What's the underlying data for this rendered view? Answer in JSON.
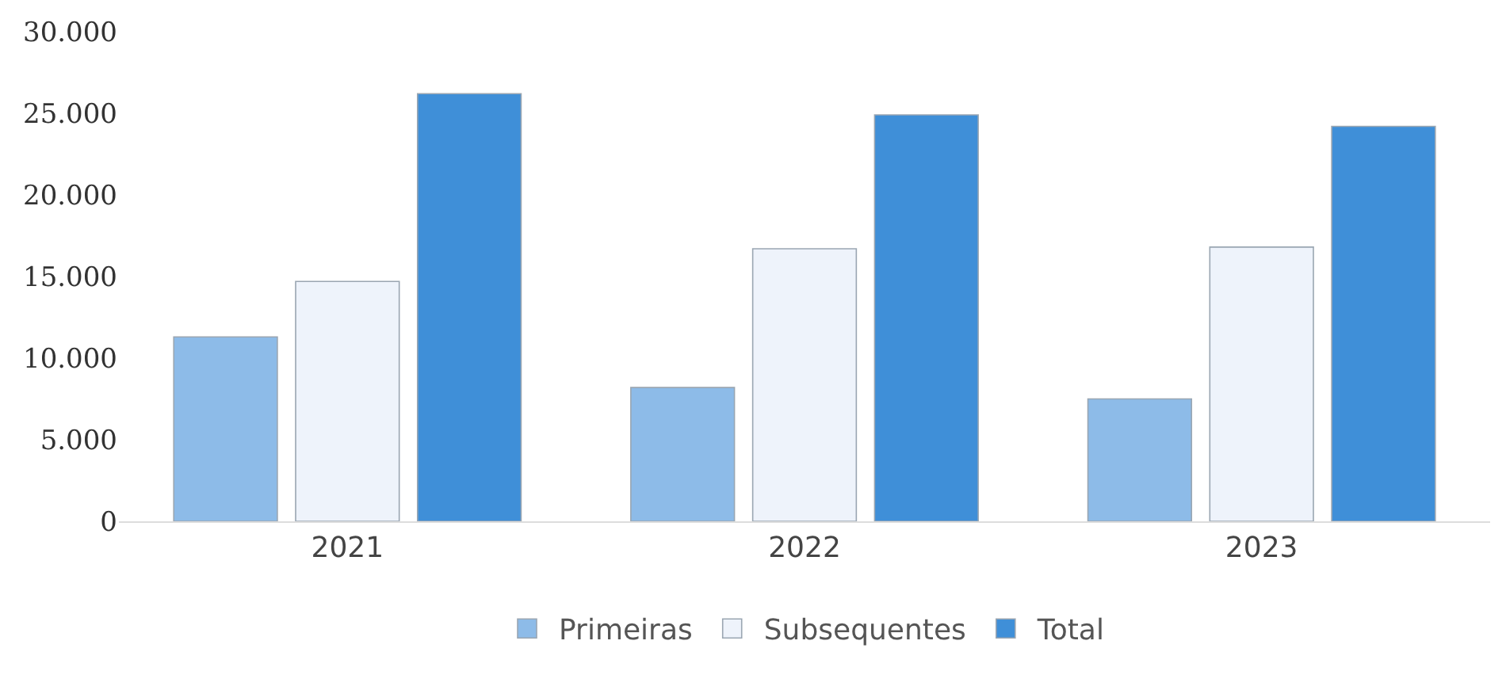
{
  "chart_data": {
    "type": "bar",
    "categories": [
      "2021",
      "2022",
      "2023"
    ],
    "series": [
      {
        "name": "Primeiras",
        "color": "#8dbbe8",
        "values": [
          11300,
          8200,
          7500
        ]
      },
      {
        "name": "Subsequentes",
        "color": "#eef3fb",
        "values": [
          14700,
          16700,
          16800
        ]
      },
      {
        "name": "Total",
        "color": "#3f8fd8",
        "values": [
          26200,
          24900,
          24200
        ]
      }
    ],
    "ylim": [
      0,
      30000
    ],
    "yticks": [
      0,
      {
        "value": 5000,
        "label": "5.000"
      },
      {
        "value": 10000,
        "label": "10.000"
      },
      {
        "value": 15000,
        "label": "15.000"
      },
      {
        "value": 20000,
        "label": "20.000"
      },
      {
        "value": 25000,
        "label": "25.000"
      },
      {
        "value": 30000,
        "label": "30.000"
      }
    ],
    "grid": false,
    "legend": "bottom"
  }
}
